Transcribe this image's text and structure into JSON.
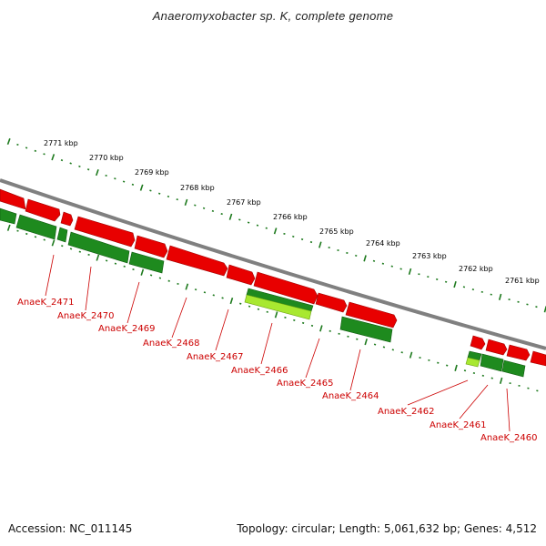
{
  "title": "Anaeromyxobacter sp. K, complete genome",
  "footer": {
    "accession": "Accession: NC_011145",
    "topology": "Topology: circular; Length: 5,061,632 bp; Genes: 4,512"
  },
  "colors": {
    "forward_gene": "#e80000",
    "reverse_gene": "#1e8a1e",
    "highlight_gene": "#a8e830",
    "backbone": "#808080",
    "tick": "#1e7a1e",
    "locus_label": "#cc0000",
    "kbp_label": "#111111"
  },
  "scale_labels": [
    "2771 kbp",
    "2770 kbp",
    "2769 kbp",
    "2768 kbp",
    "2767 kbp",
    "2766 kbp",
    "2765 kbp",
    "2764 kbp",
    "2763 kbp",
    "2762 kbp",
    "2761 kbp"
  ],
  "locus_labels": [
    "AnaeK_2471",
    "AnaeK_2470",
    "AnaeK_2469",
    "AnaeK_2468",
    "AnaeK_2467",
    "AnaeK_2466",
    "AnaeK_2465",
    "AnaeK_2464",
    "AnaeK_2462",
    "AnaeK_2461",
    "AnaeK_2460"
  ]
}
